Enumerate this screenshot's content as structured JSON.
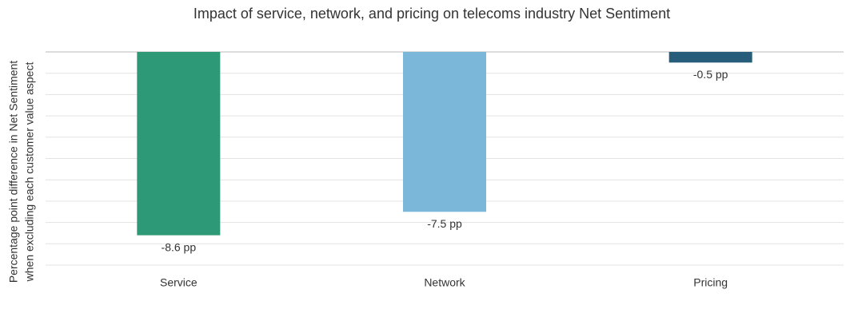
{
  "chart_data": {
    "type": "bar",
    "title": "Impact of service, network, and pricing on telecoms industry Net Sentiment",
    "y_label": [
      "Percentage point difference in Net Sentiment",
      "when excluding each customer value aspect"
    ],
    "categories": [
      "Service",
      "Network",
      "Pricing"
    ],
    "values": [
      -8.6,
      -7.5,
      -0.5
    ],
    "value_labels": [
      "-8.6 pp",
      "-7.5 pp",
      "-0.5 pp"
    ],
    "colors": [
      "#2e9977",
      "#7ab7d8",
      "#275d7a"
    ],
    "ylim": [
      -10,
      0
    ],
    "yticks": [
      -10,
      -9,
      -8,
      -7,
      -6,
      -5,
      -4,
      -3,
      -2,
      -1,
      0
    ],
    "grid": true
  }
}
